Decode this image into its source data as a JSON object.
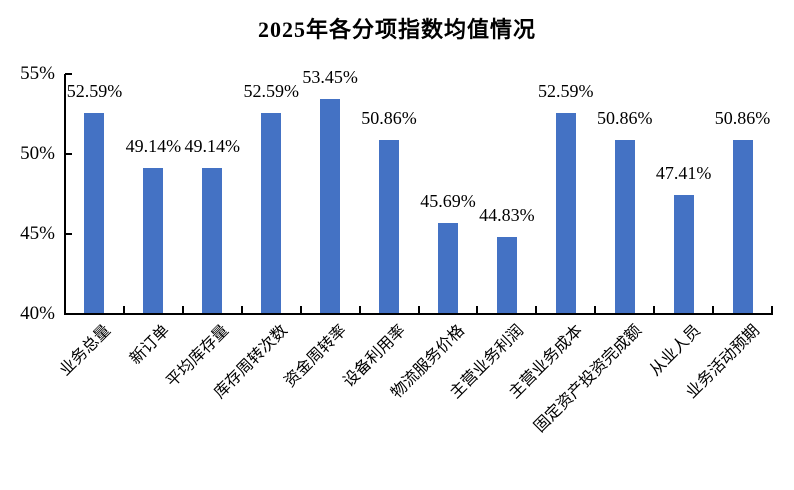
{
  "chart_data": {
    "type": "bar",
    "title": "2025年各分项指数均值情况",
    "xlabel": "",
    "ylabel": "",
    "ylim": [
      40,
      55
    ],
    "grid": false,
    "legend": null,
    "bar_color": "#4472C4",
    "axis_color": "#000000",
    "y_ticks": [
      {
        "value": 55,
        "label": "55%"
      },
      {
        "value": 50,
        "label": "50%"
      },
      {
        "value": 45,
        "label": "45%"
      },
      {
        "value": 40,
        "label": "40%"
      }
    ],
    "categories": [
      "业务总量",
      "新订单",
      "平均库存量",
      "库存周转次数",
      "资金周转率",
      "设备利用率",
      "物流服务价格",
      "主营业务利润",
      "主营业务成本",
      "固定资产投资完成额",
      "从业人员",
      "业务活动预期"
    ],
    "values": [
      52.59,
      49.14,
      49.14,
      52.59,
      53.45,
      50.86,
      45.69,
      44.83,
      52.59,
      50.86,
      47.41,
      50.86
    ],
    "value_labels": [
      "52.59%",
      "49.14%",
      "49.14%",
      "52.59%",
      "53.45%",
      "50.86%",
      "45.69%",
      "44.83%",
      "52.59%",
      "50.86%",
      "47.41%",
      "50.86%"
    ]
  }
}
